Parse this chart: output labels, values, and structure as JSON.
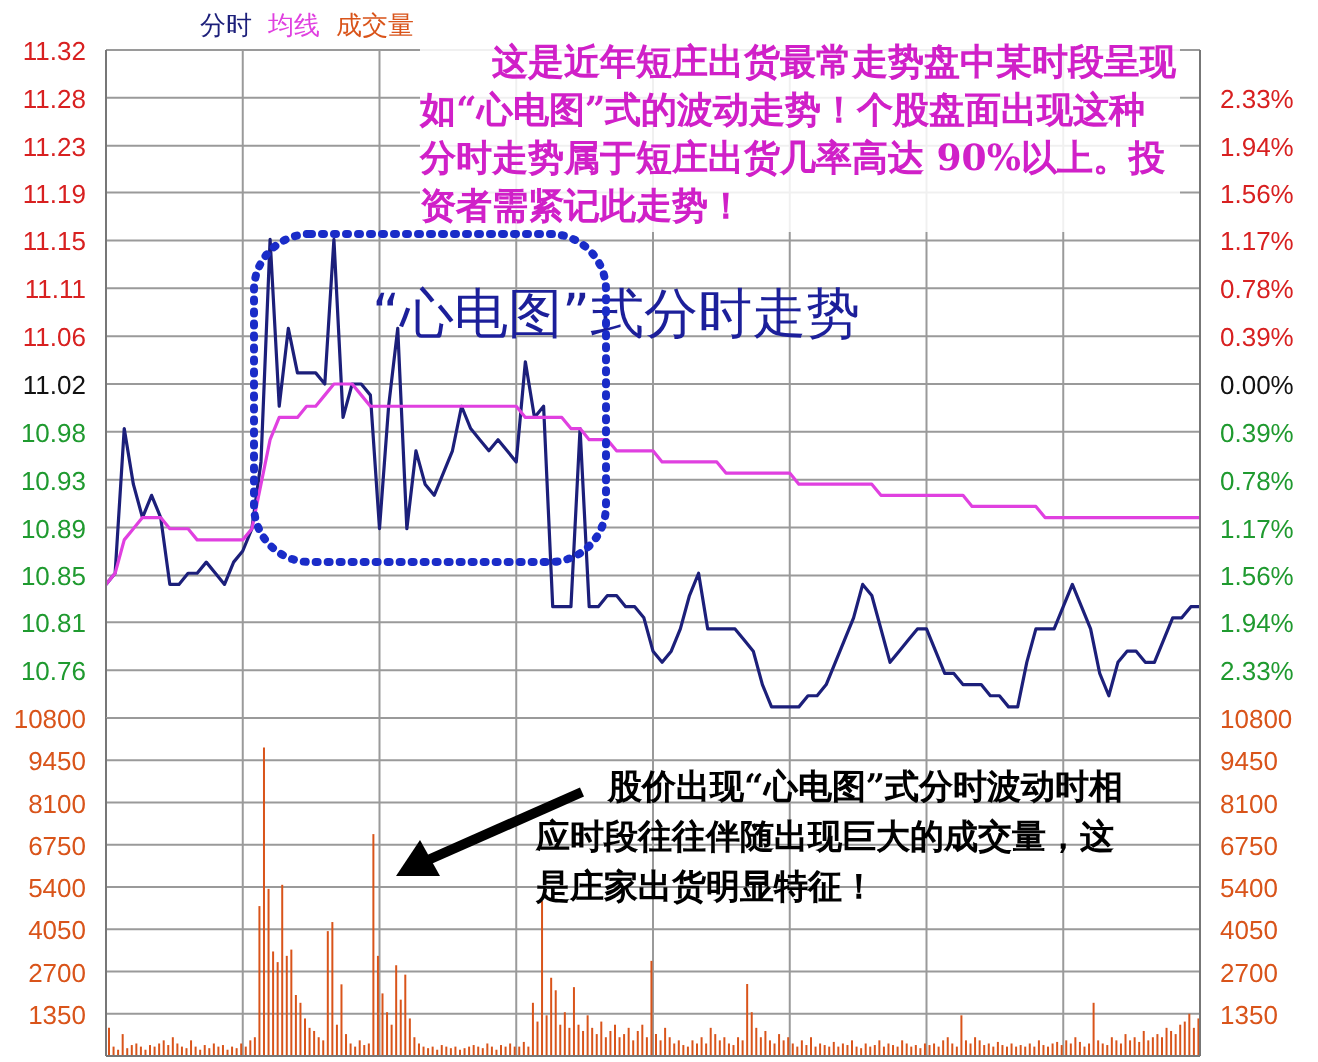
{
  "chart_data": [
    {
      "type": "line",
      "grid": "xy",
      "tick_labels": "y",
      "categories": [
        null,
        null,
        null,
        null,
        null,
        null,
        null,
        null,
        null,
        null,
        null,
        null,
        null,
        null,
        null,
        null,
        null,
        null,
        null,
        null,
        null,
        null,
        null,
        null,
        null,
        null,
        null,
        null,
        null,
        null,
        null,
        null,
        null,
        null,
        null,
        null,
        null,
        null,
        null,
        null,
        null,
        null,
        null,
        null,
        null,
        null,
        null,
        null,
        null,
        null,
        null,
        null,
        null,
        null,
        null,
        null,
        null,
        null,
        null,
        null,
        null,
        null,
        null,
        null,
        null,
        null,
        null,
        null,
        null,
        null,
        null,
        null,
        null,
        null,
        null,
        null,
        null,
        null,
        null,
        null,
        null,
        null,
        null,
        null,
        null,
        null,
        null,
        null,
        null,
        null,
        null,
        null,
        null,
        null,
        null,
        null,
        null,
        null,
        null,
        null,
        null,
        null,
        null,
        null,
        null,
        null,
        null,
        null,
        null,
        null,
        null,
        null,
        null,
        null,
        null,
        null,
        null,
        null,
        null,
        null,
        null
      ],
      "ylim": [
        10.72,
        11.32
      ],
      "yticks": [
        {
          "value": 10.763,
          "label": "10.76"
        },
        {
          "value": 10.806,
          "label": "10.81"
        },
        {
          "value": 10.848,
          "label": "10.85"
        },
        {
          "value": 10.891,
          "label": "10.89"
        },
        {
          "value": 10.934,
          "label": "10.93"
        },
        {
          "value": 10.977,
          "label": "10.98"
        },
        11.02,
        {
          "value": 11.063,
          "label": "11.06"
        },
        {
          "value": 11.106,
          "label": "11.11"
        },
        {
          "value": 11.149,
          "label": "11.15"
        },
        {
          "value": 11.192,
          "label": "11.19"
        },
        {
          "value": 11.234,
          "label": "11.23"
        },
        {
          "value": 11.277,
          "label": "11.28"
        },
        11.32
      ],
      "y2lim": [
        -2.722,
        2.722
      ],
      "y2ticks": [
        {
          "value": -2.33,
          "label": "2.33%"
        },
        {
          "value": -1.94,
          "label": "1.94%"
        },
        {
          "value": -1.56,
          "label": "1.56%"
        },
        {
          "value": -1.17,
          "label": "1.17%"
        },
        {
          "value": -0.78,
          "label": "0.78%"
        },
        {
          "value": -0.39,
          "label": "0.39%"
        },
        {
          "value": 0,
          "label": "0.00%"
        },
        {
          "value": 0.39,
          "label": "0.39%"
        },
        {
          "value": 0.78,
          "label": "0.78%"
        },
        {
          "value": 1.17,
          "label": "1.17%"
        },
        {
          "value": 1.56,
          "label": "1.56%"
        },
        {
          "value": 1.94,
          "label": "1.94%"
        },
        {
          "value": 2.33,
          "label": "2.33%"
        }
      ],
      "annotations": [
        "这是近年短庄出货最常走势盘中某时段呈现如“心电图”式的波动走势！个股盘面出现这种分时走势属于短庄出货几率高达 90%以上。投资者需紧记此走势！",
        "“心电图”式分时走势"
      ],
      "series": [
        {
          "name": "分时",
          "color": "#1c1f7a",
          "values": [
            10.84,
            10.85,
            10.98,
            10.93,
            10.9,
            10.92,
            10.9,
            10.84,
            10.84,
            10.85,
            10.85,
            10.86,
            10.85,
            10.84,
            10.86,
            10.87,
            10.89,
            10.95,
            11.15,
            11.0,
            11.07,
            11.03,
            11.03,
            11.03,
            11.02,
            11.15,
            10.99,
            11.02,
            11.02,
            11.01,
            10.89,
            11.0,
            11.07,
            10.89,
            10.96,
            10.93,
            10.92,
            10.94,
            10.96,
            11.0,
            10.98,
            10.97,
            10.96,
            10.97,
            10.96,
            10.95,
            11.04,
            10.99,
            11.0,
            10.82,
            10.82,
            10.82,
            10.98,
            10.82,
            10.82,
            10.83,
            10.83,
            10.82,
            10.82,
            10.81,
            10.78,
            10.77,
            10.78,
            10.8,
            10.83,
            10.85,
            10.8,
            10.8,
            10.8,
            10.8,
            10.79,
            10.78,
            10.75,
            10.73,
            10.73,
            10.73,
            10.73,
            10.74,
            10.74,
            10.75,
            10.77,
            10.79,
            10.81,
            10.84,
            10.83,
            10.8,
            10.77,
            10.78,
            10.79,
            10.8,
            10.8,
            10.78,
            10.76,
            10.76,
            10.75,
            10.75,
            10.75,
            10.74,
            10.74,
            10.73,
            10.73,
            10.77,
            10.8,
            10.8,
            10.8,
            10.82,
            10.84,
            10.82,
            10.8,
            10.76,
            10.74,
            10.77,
            10.78,
            10.78,
            10.77,
            10.77,
            10.79,
            10.81,
            10.81,
            10.82,
            10.82
          ]
        },
        {
          "name": "均线",
          "color": "#e040e0",
          "values": [
            10.84,
            10.85,
            10.88,
            10.89,
            10.9,
            10.9,
            10.9,
            10.89,
            10.89,
            10.89,
            10.88,
            10.88,
            10.88,
            10.88,
            10.88,
            10.88,
            10.89,
            10.93,
            10.97,
            10.99,
            10.99,
            10.99,
            11.0,
            11.0,
            11.01,
            11.02,
            11.02,
            11.02,
            11.01,
            11.0,
            11.0,
            11.0,
            11.0,
            11.0,
            11.0,
            11.0,
            11.0,
            11.0,
            11.0,
            11.0,
            11.0,
            11.0,
            11.0,
            11.0,
            11.0,
            11.0,
            10.99,
            10.99,
            10.99,
            10.99,
            10.99,
            10.98,
            10.98,
            10.97,
            10.97,
            10.97,
            10.96,
            10.96,
            10.96,
            10.96,
            10.96,
            10.95,
            10.95,
            10.95,
            10.95,
            10.95,
            10.95,
            10.95,
            10.94,
            10.94,
            10.94,
            10.94,
            10.94,
            10.94,
            10.94,
            10.94,
            10.93,
            10.93,
            10.93,
            10.93,
            10.93,
            10.93,
            10.93,
            10.93,
            10.93,
            10.92,
            10.92,
            10.92,
            10.92,
            10.92,
            10.92,
            10.92,
            10.92,
            10.92,
            10.92,
            10.91,
            10.91,
            10.91,
            10.91,
            10.91,
            10.91,
            10.91,
            10.91,
            10.9,
            10.9,
            10.9,
            10.9,
            10.9,
            10.9,
            10.9,
            10.9,
            10.9,
            10.9,
            10.9,
            10.9,
            10.9,
            10.9,
            10.9,
            10.9,
            10.9,
            10.9
          ]
        }
      ]
    },
    {
      "type": "bar",
      "grid": "xy",
      "tick_labels": "y",
      "categories": [
        null,
        null,
        null,
        null,
        null,
        null,
        null,
        null,
        null,
        null,
        null,
        null,
        null,
        null,
        null,
        null,
        null,
        null,
        null,
        null,
        null,
        null,
        null,
        null,
        null,
        null,
        null,
        null,
        null,
        null,
        null,
        null,
        null,
        null,
        null,
        null,
        null,
        null,
        null,
        null,
        null,
        null,
        null,
        null,
        null,
        null,
        null,
        null,
        null,
        null,
        null,
        null,
        null,
        null,
        null,
        null,
        null,
        null,
        null,
        null,
        null,
        null,
        null,
        null,
        null,
        null,
        null,
        null,
        null,
        null,
        null,
        null,
        null,
        null,
        null,
        null,
        null,
        null,
        null,
        null,
        null,
        null,
        null,
        null,
        null,
        null,
        null,
        null,
        null,
        null,
        null,
        null,
        null,
        null,
        null,
        null,
        null,
        null,
        null,
        null,
        null,
        null,
        null,
        null,
        null,
        null,
        null,
        null,
        null,
        null,
        null,
        null,
        null,
        null,
        null,
        null,
        null,
        null,
        null,
        null,
        null,
        null,
        null,
        null,
        null,
        null,
        null,
        null,
        null,
        null,
        null,
        null,
        null,
        null,
        null,
        null,
        null,
        null,
        null,
        null,
        null,
        null,
        null,
        null,
        null,
        null,
        null,
        null,
        null,
        null,
        null,
        null,
        null,
        null,
        null,
        null,
        null,
        null,
        null,
        null,
        null,
        null,
        null,
        null,
        null,
        null,
        null,
        null,
        null,
        null,
        null,
        null,
        null,
        null,
        null,
        null,
        null,
        null,
        null,
        null,
        null,
        null,
        null,
        null,
        null,
        null,
        null,
        null,
        null,
        null,
        null,
        null,
        null,
        null,
        null,
        null,
        null,
        null,
        null,
        null,
        null,
        null,
        null,
        null,
        null,
        null,
        null,
        null,
        null,
        null,
        null,
        null,
        null,
        null,
        null,
        null,
        null,
        null,
        null,
        null,
        null,
        null,
        null,
        null,
        null,
        null,
        null,
        null,
        null,
        null,
        null,
        null,
        null,
        null,
        null,
        null,
        null,
        null,
        null,
        null
      ],
      "ylim": [
        0,
        10800
      ],
      "yticks": [
        1350,
        2700,
        4050,
        5400,
        6750,
        8100,
        9450,
        10800
      ],
      "y2lim": [
        0,
        10800
      ],
      "y2ticks": [
        1350,
        2700,
        4050,
        5400,
        6750,
        8100,
        9450,
        10800
      ],
      "annotations": [
        "股价出现“心电图”式分时波动时相应时段往往伴随出现巨大的成交量，这是庄家出货明显特征！"
      ],
      "series": [
        {
          "name": "成交量",
          "color": "#d9541a",
          "values": [
            900,
            300,
            200,
            700,
            250,
            350,
            400,
            300,
            200,
            350,
            300,
            400,
            500,
            350,
            600,
            400,
            300,
            250,
            500,
            300,
            200,
            350,
            250,
            400,
            300,
            350,
            200,
            300,
            250,
            400,
            300,
            500,
            600,
            4790,
            9860,
            5340,
            3340,
            3000,
            5470,
            3200,
            3400,
            1950,
            1700,
            1200,
            900,
            800,
            600,
            500,
            3990,
            4280,
            1000,
            2290,
            700,
            400,
            300,
            500,
            350,
            400,
            7090,
            3200,
            2000,
            1400,
            1000,
            2900,
            1800,
            2600,
            1200,
            600,
            400,
            300,
            250,
            300,
            200,
            350,
            300,
            250,
            300,
            200,
            250,
            300,
            350,
            300,
            250,
            400,
            300,
            200,
            350,
            300,
            400,
            300,
            300,
            450,
            300,
            1700,
            1100,
            4950,
            1300,
            2500,
            2100,
            1000,
            1400,
            900,
            2200,
            1000,
            800,
            1300,
            900,
            700,
            1100,
            600,
            800,
            1000,
            600,
            700,
            900,
            500,
            800,
            1000,
            600,
            3040,
            700,
            500,
            900,
            600,
            400,
            500,
            350,
            300,
            500,
            400,
            600,
            400,
            900,
            700,
            500,
            600,
            400,
            350,
            600,
            500,
            2300,
            1400,
            900,
            600,
            800,
            500,
            400,
            700,
            500,
            600,
            400,
            300,
            500,
            350,
            600,
            300,
            400,
            350,
            300,
            450,
            300,
            400,
            350,
            500,
            300,
            250,
            400,
            300,
            350,
            500,
            300,
            400,
            350,
            300,
            500,
            400,
            300,
            350,
            250,
            400,
            350,
            400,
            300,
            500,
            600,
            400,
            300,
            1300,
            500,
            400,
            600,
            500,
            350,
            400,
            300,
            450,
            350,
            300,
            400,
            300,
            350,
            300,
            400,
            300,
            500,
            350,
            300,
            400,
            450,
            350,
            500,
            400,
            600,
            450,
            300,
            400,
            1700,
            500,
            400,
            350,
            600,
            500,
            400,
            700,
            500,
            600,
            450,
            800,
            500,
            600,
            700,
            600,
            900,
            800,
            700,
            1000,
            1100,
            1350,
            900,
            1200
          ]
        }
      ]
    }
  ]
}
